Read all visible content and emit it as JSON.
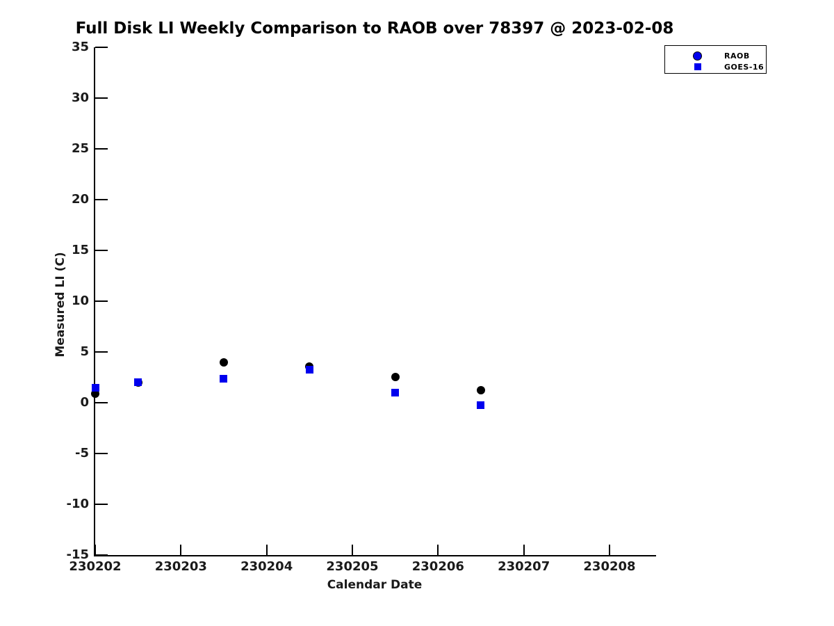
{
  "chart_data": {
    "type": "scatter",
    "title": "Full Disk LI Weekly Comparison to RAOB over 78397 @ 2023-02-08",
    "xlabel": "Calendar Date",
    "ylabel": "Measured LI (C)",
    "grid": false,
    "legend_position": "upper-right-outside",
    "xlim": [
      230202,
      230208.53
    ],
    "ylim": [
      -15,
      35
    ],
    "x_tick_values": [
      230202,
      230203,
      230204,
      230205,
      230206,
      230207,
      230208
    ],
    "x_tick_labels": [
      "230202",
      "230203",
      "230204",
      "230205",
      "230206",
      "230207",
      "230208"
    ],
    "y_tick_values": [
      35,
      30,
      25,
      20,
      15,
      10,
      5,
      0,
      -5,
      -10,
      -15
    ],
    "y_tick_labels": [
      "35",
      "30",
      "25",
      "20",
      "15",
      "10",
      "5",
      "0",
      "-5",
      "-10",
      "-15"
    ],
    "series": [
      {
        "name": "RAOB",
        "marker": "circle",
        "plot_color": "#000000",
        "legend_color": "#0000EE",
        "points": [
          {
            "x": 230202.0,
            "y": 0.9
          },
          {
            "x": 230202.5,
            "y": 2.0
          },
          {
            "x": 230203.5,
            "y": 4.0
          },
          {
            "x": 230204.5,
            "y": 3.55
          },
          {
            "x": 230205.5,
            "y": 2.55
          },
          {
            "x": 230206.5,
            "y": 1.25
          }
        ]
      },
      {
        "name": "GOES-16",
        "marker": "square",
        "plot_color": "#0000EE",
        "legend_color": "#0000EE",
        "points": [
          {
            "x": 230202.0,
            "y": 1.45
          },
          {
            "x": 230202.5,
            "y": 2.0
          },
          {
            "x": 230203.5,
            "y": 2.35
          },
          {
            "x": 230204.5,
            "y": 3.25
          },
          {
            "x": 230205.5,
            "y": 1.0
          },
          {
            "x": 230206.5,
            "y": -0.25
          }
        ]
      }
    ]
  }
}
